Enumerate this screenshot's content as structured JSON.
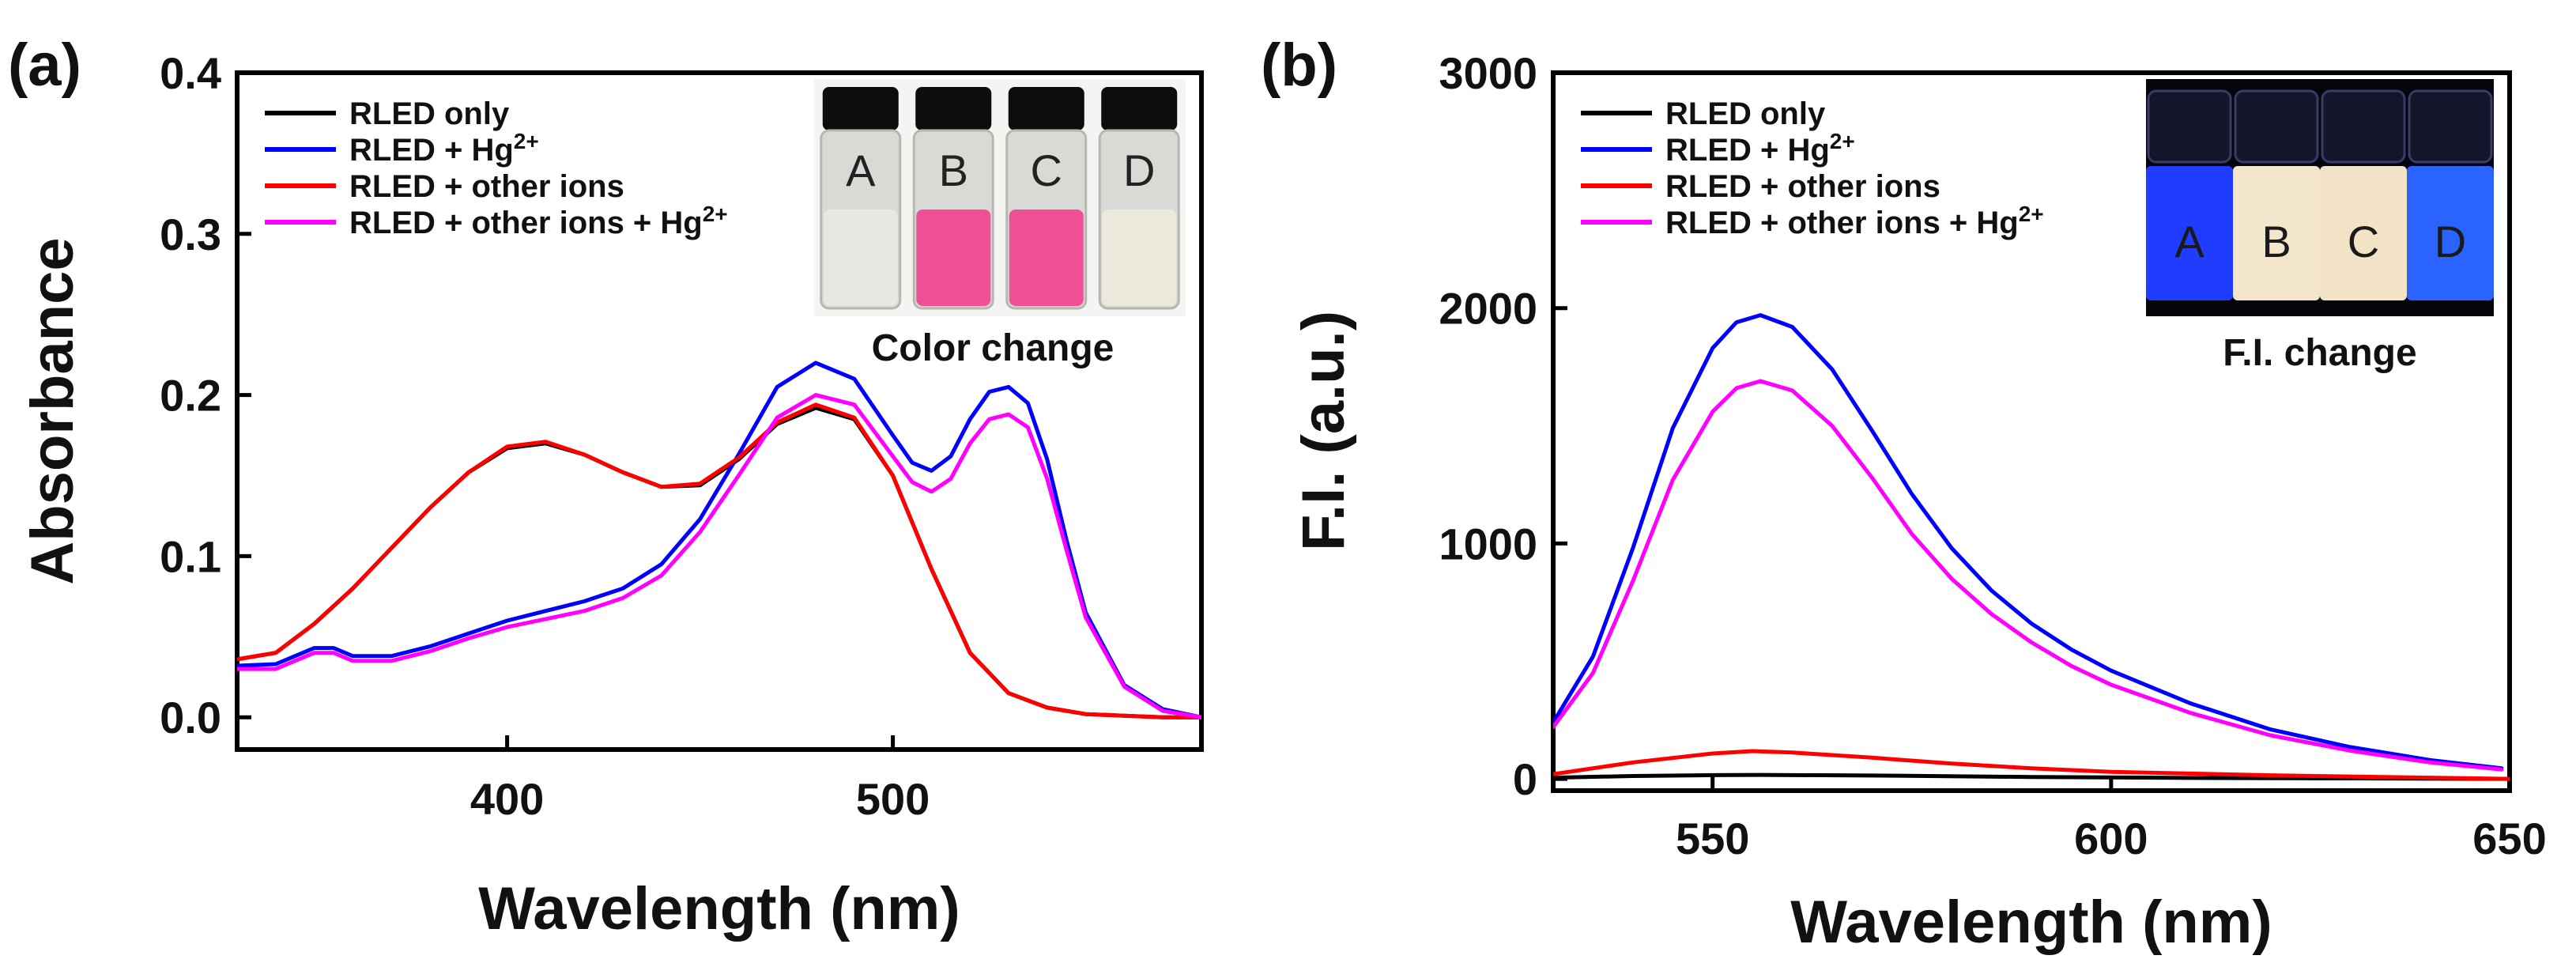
{
  "chart_data": [
    {
      "type": "line",
      "panel_label": "(a)",
      "xlabel": "Wavelength (nm)",
      "ylabel": "Absorbance",
      "xlim": [
        330,
        580
      ],
      "ylim": [
        -0.02,
        0.4
      ],
      "x_ticks": [
        400,
        500
      ],
      "x_tick_labels": [
        "400",
        "500"
      ],
      "y_ticks": [
        0,
        0.1,
        0.2,
        0.3,
        0.4
      ],
      "y_tick_labels": [
        "0.0",
        "0.1",
        "0.2",
        "0.3",
        "0.4"
      ],
      "legend_position": "top-left",
      "series": [
        {
          "name": "RLED only",
          "color": "#000000",
          "points": [
            [
              330,
              0.036
            ],
            [
              340,
              0.04
            ],
            [
              350,
              0.058
            ],
            [
              360,
              0.08
            ],
            [
              370,
              0.105
            ],
            [
              380,
              0.13
            ],
            [
              390,
              0.152
            ],
            [
              400,
              0.167
            ],
            [
              410,
              0.17
            ],
            [
              420,
              0.163
            ],
            [
              430,
              0.152
            ],
            [
              440,
              0.143
            ],
            [
              450,
              0.144
            ],
            [
              460,
              0.16
            ],
            [
              470,
              0.182
            ],
            [
              480,
              0.192
            ],
            [
              490,
              0.185
            ],
            [
              500,
              0.15
            ],
            [
              510,
              0.092
            ],
            [
              520,
              0.04
            ],
            [
              530,
              0.015
            ],
            [
              540,
              0.006
            ],
            [
              550,
              0.002
            ],
            [
              560,
              0.001
            ],
            [
              570,
              0.0
            ],
            [
              580,
              0.0
            ]
          ]
        },
        {
          "name": "RLED + Hg",
          "name_sup": "2+",
          "color": "#0000ff",
          "points": [
            [
              330,
              0.032
            ],
            [
              340,
              0.033
            ],
            [
              350,
              0.043
            ],
            [
              355,
              0.043
            ],
            [
              360,
              0.038
            ],
            [
              370,
              0.038
            ],
            [
              380,
              0.044
            ],
            [
              390,
              0.052
            ],
            [
              400,
              0.06
            ],
            [
              410,
              0.066
            ],
            [
              420,
              0.072
            ],
            [
              430,
              0.08
            ],
            [
              440,
              0.095
            ],
            [
              450,
              0.123
            ],
            [
              460,
              0.163
            ],
            [
              470,
              0.205
            ],
            [
              480,
              0.22
            ],
            [
              490,
              0.21
            ],
            [
              500,
              0.175
            ],
            [
              505,
              0.158
            ],
            [
              510,
              0.153
            ],
            [
              515,
              0.162
            ],
            [
              520,
              0.185
            ],
            [
              525,
              0.202
            ],
            [
              530,
              0.205
            ],
            [
              535,
              0.195
            ],
            [
              540,
              0.16
            ],
            [
              545,
              0.11
            ],
            [
              550,
              0.065
            ],
            [
              560,
              0.02
            ],
            [
              570,
              0.005
            ],
            [
              580,
              0.0
            ]
          ]
        },
        {
          "name": "RLED + other ions",
          "color": "#ff0000",
          "points": [
            [
              330,
              0.036
            ],
            [
              340,
              0.04
            ],
            [
              350,
              0.058
            ],
            [
              360,
              0.08
            ],
            [
              370,
              0.105
            ],
            [
              380,
              0.13
            ],
            [
              390,
              0.152
            ],
            [
              400,
              0.168
            ],
            [
              410,
              0.171
            ],
            [
              420,
              0.163
            ],
            [
              430,
              0.152
            ],
            [
              440,
              0.143
            ],
            [
              450,
              0.145
            ],
            [
              460,
              0.161
            ],
            [
              470,
              0.183
            ],
            [
              480,
              0.194
            ],
            [
              490,
              0.186
            ],
            [
              500,
              0.15
            ],
            [
              510,
              0.092
            ],
            [
              520,
              0.04
            ],
            [
              530,
              0.015
            ],
            [
              540,
              0.006
            ],
            [
              550,
              0.002
            ],
            [
              560,
              0.001
            ],
            [
              570,
              0.0
            ],
            [
              580,
              0.0
            ]
          ]
        },
        {
          "name": "RLED + other ions + Hg",
          "name_sup": "2+",
          "color": "#ff00ff",
          "points": [
            [
              330,
              0.03
            ],
            [
              340,
              0.03
            ],
            [
              350,
              0.04
            ],
            [
              355,
              0.04
            ],
            [
              360,
              0.035
            ],
            [
              370,
              0.035
            ],
            [
              380,
              0.041
            ],
            [
              390,
              0.049
            ],
            [
              400,
              0.056
            ],
            [
              410,
              0.061
            ],
            [
              420,
              0.066
            ],
            [
              430,
              0.074
            ],
            [
              440,
              0.088
            ],
            [
              450,
              0.115
            ],
            [
              460,
              0.15
            ],
            [
              470,
              0.186
            ],
            [
              480,
              0.2
            ],
            [
              490,
              0.194
            ],
            [
              500,
              0.162
            ],
            [
              505,
              0.146
            ],
            [
              510,
              0.14
            ],
            [
              515,
              0.148
            ],
            [
              520,
              0.17
            ],
            [
              525,
              0.185
            ],
            [
              530,
              0.188
            ],
            [
              535,
              0.18
            ],
            [
              540,
              0.148
            ],
            [
              545,
              0.104
            ],
            [
              550,
              0.062
            ],
            [
              560,
              0.019
            ],
            [
              570,
              0.004
            ],
            [
              580,
              0.0
            ]
          ]
        }
      ],
      "inset": {
        "caption": "Color change",
        "vials": [
          {
            "letter": "A",
            "liquid_color": "#e7e7e3"
          },
          {
            "letter": "B",
            "liquid_color": "#ef4f95"
          },
          {
            "letter": "C",
            "liquid_color": "#ef4f95"
          },
          {
            "letter": "D",
            "liquid_color": "#ece9dc"
          }
        ]
      }
    },
    {
      "type": "line",
      "panel_label": "(b)",
      "xlabel": "Wavelength (nm)",
      "ylabel": "F.I. (a.u.)",
      "xlim": [
        530,
        650
      ],
      "ylim": [
        -50,
        3000
      ],
      "x_ticks": [
        550,
        600,
        650
      ],
      "x_tick_labels": [
        "550",
        "600",
        "650"
      ],
      "y_ticks": [
        0,
        1000,
        2000,
        3000
      ],
      "y_tick_labels": [
        "0",
        "1000",
        "2000",
        "3000"
      ],
      "legend_position": "top-left",
      "series": [
        {
          "name": "RLED only",
          "color": "#000000",
          "points": [
            [
              530,
              5
            ],
            [
              540,
              12
            ],
            [
              550,
              16
            ],
            [
              556,
              17
            ],
            [
              570,
              14
            ],
            [
              590,
              8
            ],
            [
              610,
              4
            ],
            [
              630,
              2
            ],
            [
              650,
              0
            ]
          ]
        },
        {
          "name": "RLED + Hg",
          "name_sup": "2+",
          "color": "#0000ff",
          "points": [
            [
              530,
              240
            ],
            [
              535,
              520
            ],
            [
              540,
              980
            ],
            [
              545,
              1490
            ],
            [
              550,
              1830
            ],
            [
              553,
              1940
            ],
            [
              556,
              1970
            ],
            [
              560,
              1920
            ],
            [
              565,
              1740
            ],
            [
              570,
              1480
            ],
            [
              575,
              1210
            ],
            [
              580,
              980
            ],
            [
              585,
              800
            ],
            [
              590,
              660
            ],
            [
              595,
              550
            ],
            [
              600,
              460
            ],
            [
              610,
              320
            ],
            [
              620,
              210
            ],
            [
              630,
              135
            ],
            [
              640,
              80
            ],
            [
              649,
              45
            ]
          ]
        },
        {
          "name": "RLED + other ions",
          "color": "#ff0000",
          "points": [
            [
              530,
              20
            ],
            [
              540,
              70
            ],
            [
              550,
              108
            ],
            [
              555,
              118
            ],
            [
              560,
              112
            ],
            [
              570,
              90
            ],
            [
              580,
              65
            ],
            [
              590,
              45
            ],
            [
              600,
              30
            ],
            [
              620,
              15
            ],
            [
              640,
              5
            ],
            [
              650,
              0
            ]
          ]
        },
        {
          "name": "RLED + other ions + Hg",
          "name_sup": "2+",
          "color": "#ff00ff",
          "points": [
            [
              530,
              220
            ],
            [
              535,
              450
            ],
            [
              540,
              840
            ],
            [
              545,
              1270
            ],
            [
              550,
              1560
            ],
            [
              553,
              1660
            ],
            [
              556,
              1690
            ],
            [
              560,
              1650
            ],
            [
              565,
              1500
            ],
            [
              570,
              1280
            ],
            [
              575,
              1040
            ],
            [
              580,
              850
            ],
            [
              585,
              700
            ],
            [
              590,
              580
            ],
            [
              595,
              480
            ],
            [
              600,
              400
            ],
            [
              610,
              280
            ],
            [
              620,
              185
            ],
            [
              630,
              120
            ],
            [
              640,
              70
            ],
            [
              649,
              40
            ]
          ]
        }
      ],
      "inset": {
        "caption": "F.I. change",
        "vials": [
          {
            "letter": "A",
            "liquid_color": "#1f3cff"
          },
          {
            "letter": "B",
            "liquid_color": "#f3e6cc"
          },
          {
            "letter": "C",
            "liquid_color": "#f3e3c6"
          },
          {
            "letter": "D",
            "liquid_color": "#2a63ff"
          }
        ]
      }
    }
  ]
}
